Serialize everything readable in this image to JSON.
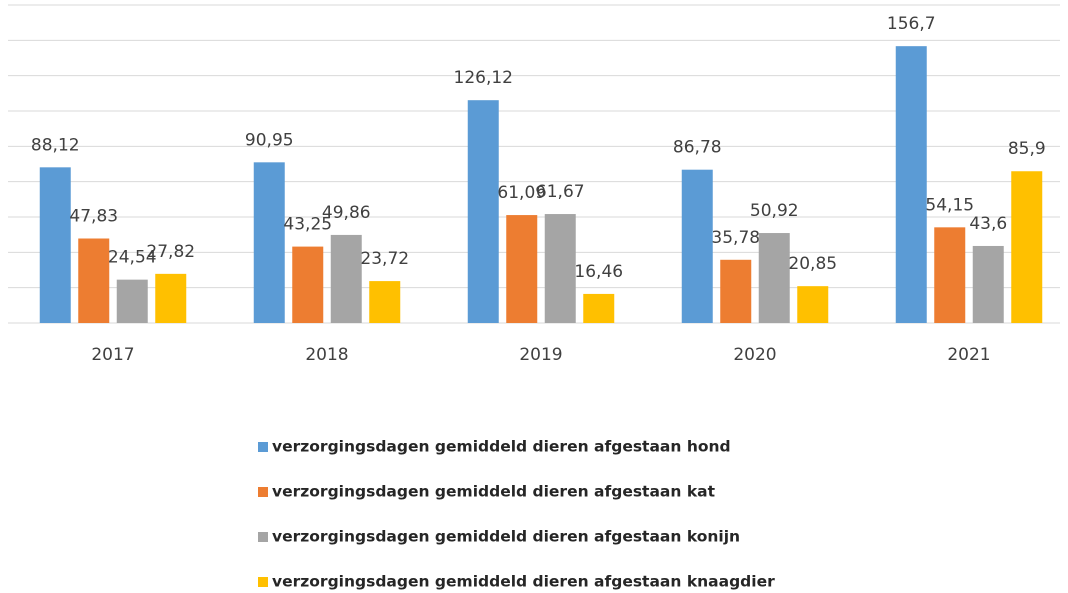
{
  "chart_data": {
    "type": "bar",
    "categories": [
      "2017",
      "2018",
      "2019",
      "2020",
      "2021"
    ],
    "series": [
      {
        "name": "verzorgingsdagen gemiddeld dieren afgestaan hond",
        "color": "#5b9bd5",
        "values": [
          88.12,
          90.95,
          126.12,
          86.78,
          156.7
        ],
        "value_labels": [
          "88,12",
          "90,95",
          "126,12",
          "86,78",
          "156,7"
        ]
      },
      {
        "name": "verzorgingsdagen gemiddeld dieren afgestaan kat",
        "color": "#ed7d31",
        "values": [
          47.83,
          43.25,
          61.09,
          35.78,
          54.15
        ],
        "value_labels": [
          "47,83",
          "43,25",
          "61,09",
          "35,78",
          "54,15"
        ]
      },
      {
        "name": "verzorgingsdagen gemiddeld dieren afgestaan konijn",
        "color": "#a5a5a5",
        "values": [
          24.54,
          49.86,
          61.67,
          50.92,
          43.6
        ],
        "value_labels": [
          "24,54",
          "49,86",
          "61,67",
          "50,92",
          "43,6"
        ]
      },
      {
        "name": "verzorgingsdagen gemiddeld dieren afgestaan knaagdier",
        "color": "#ffc000",
        "values": [
          27.82,
          23.72,
          16.46,
          20.85,
          85.9
        ],
        "value_labels": [
          "27,82",
          "23,72",
          "16,46",
          "20,85",
          "85,9"
        ]
      }
    ],
    "ylim": [
      0,
      180
    ],
    "yticks": [
      0,
      20,
      40,
      60,
      80,
      100,
      120,
      140,
      160,
      180
    ],
    "ytick_labels": false,
    "grid": true,
    "legend": "bottom"
  }
}
